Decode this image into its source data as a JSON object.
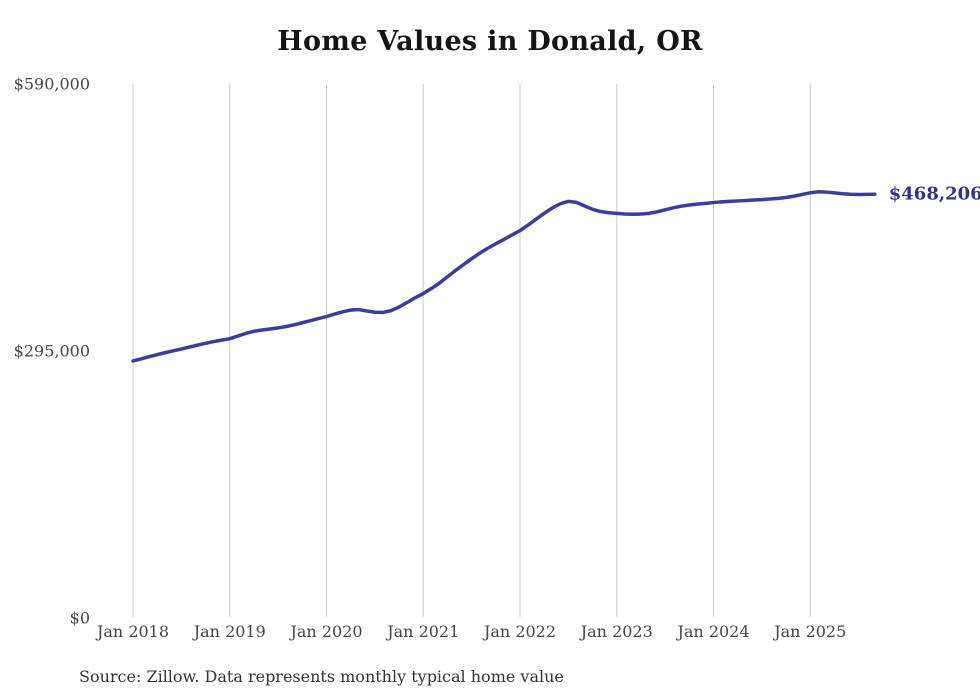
{
  "chart": {
    "title": "Home Values in Donald, OR",
    "end_label": "$468,206",
    "source": "Source: Zillow. Data represents monthly typical home value",
    "colors": {
      "line": "#3c3c9e",
      "end_label": "#32328c",
      "grid": "#cbcbcb",
      "axis_text": "#464646",
      "title_text": "#151515",
      "source_text": "#333333",
      "background": "#ffffff"
    }
  },
  "chart_data": {
    "type": "line",
    "title": "Home Values in Donald, OR",
    "series_name": "Monthly typical home value (Zillow)",
    "x_start": "2018-01",
    "x_end": "2025-09",
    "x_interval": "month",
    "x_tick_labels": [
      "Jan 2018",
      "Jan 2019",
      "Jan 2020",
      "Jan 2021",
      "Jan 2022",
      "Jan 2023",
      "Jan 2024",
      "Jan 2025"
    ],
    "y_ticks": [
      {
        "label": "$590,000",
        "value": 590000
      },
      {
        "label": "$295,000",
        "value": 295000
      },
      {
        "label": "$0",
        "value": 0
      }
    ],
    "ylim": [
      0,
      590000
    ],
    "grid": "vertical",
    "legend": "none",
    "final_value": 468206,
    "values": [
      284000,
      286200,
      288700,
      291000,
      293200,
      295200,
      297200,
      299400,
      301500,
      303500,
      305400,
      307000,
      308600,
      311500,
      314500,
      316800,
      318200,
      319300,
      320500,
      322000,
      324000,
      326200,
      328500,
      330800,
      333100,
      335800,
      338300,
      340200,
      340800,
      339200,
      337800,
      337600,
      339600,
      343600,
      348600,
      353800,
      358500,
      364000,
      370000,
      377000,
      384000,
      390500,
      397000,
      403000,
      408500,
      413500,
      418300,
      423200,
      428000,
      434100,
      440600,
      447100,
      453000,
      457700,
      460400,
      459200,
      455300,
      451600,
      449100,
      447700,
      447000,
      446400,
      446100,
      446300,
      447100,
      448800,
      451000,
      453200,
      455000,
      456300,
      457300,
      458100,
      459000,
      459700,
      460300,
      460800,
      461300,
      461800,
      462300,
      462900,
      463600,
      464600,
      466100,
      468000,
      469800,
      470900,
      470600,
      469700,
      468800,
      468200,
      467900,
      468000,
      468206
    ]
  }
}
